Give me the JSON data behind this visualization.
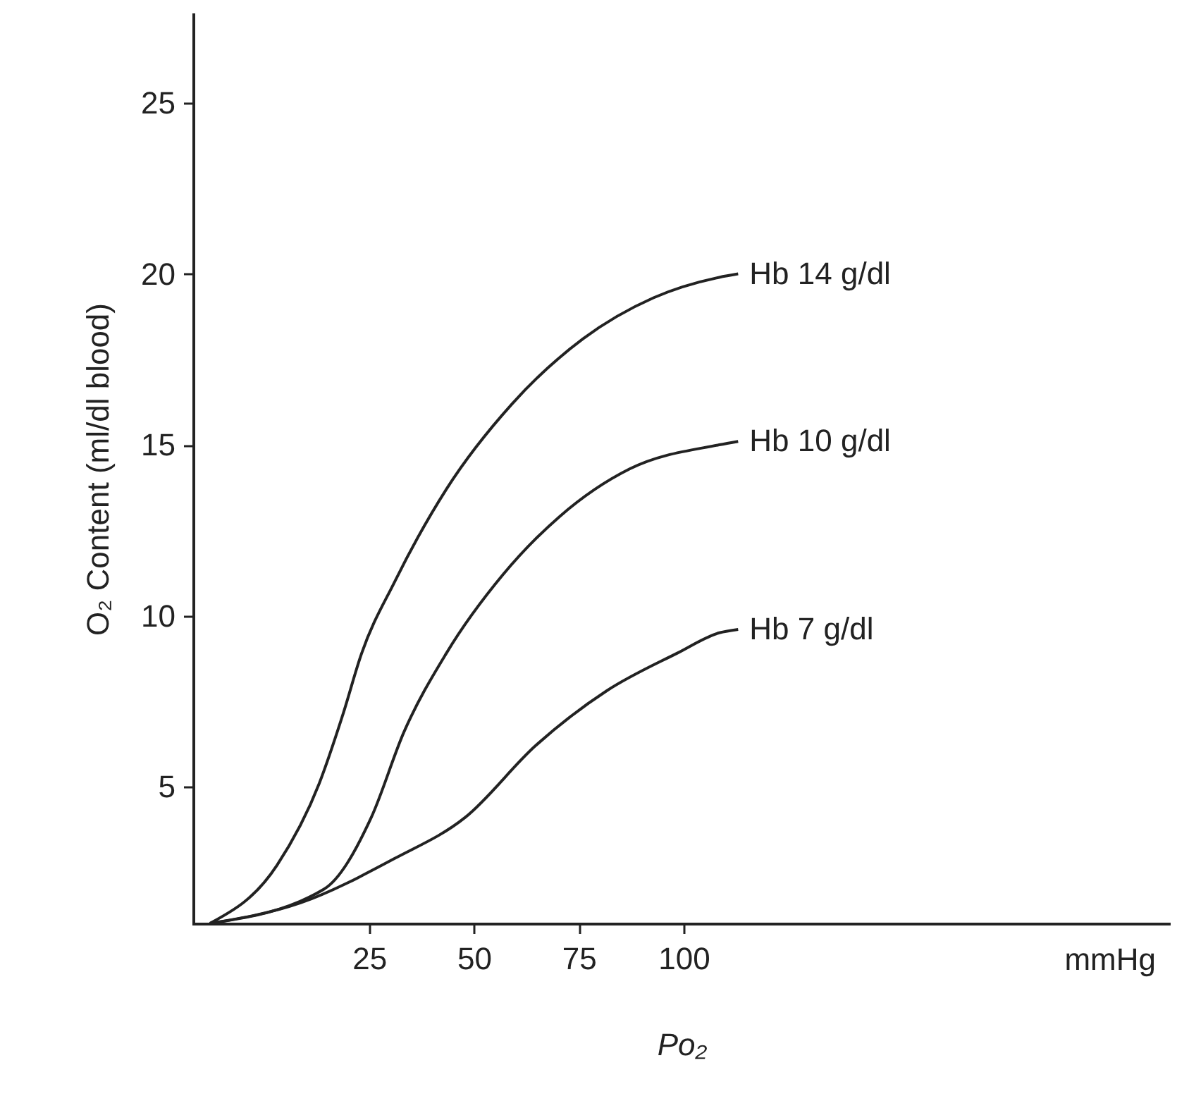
{
  "chart_data": {
    "type": "line",
    "xlabel": "Po₂",
    "ylabel": "O₂ Content (ml/dl blood)",
    "xlim": [
      -17,
      216
    ],
    "ylim": [
      1,
      27.6
    ],
    "xticks": [
      25,
      50,
      75,
      100
    ],
    "yticks": [
      5,
      10,
      15,
      20,
      25
    ],
    "grid": false,
    "marker": "none",
    "line_style": "solid",
    "annotations": [
      "mmHg"
    ],
    "series": [
      {
        "name": "Hb 14 g/dl",
        "color": "#222222",
        "x": [
          -13,
          3.0,
          13.1,
          18.7,
          23.2,
          31.1,
          43.4,
          59.1,
          76.0,
          92.8,
          108.5,
          113
        ],
        "values": [
          1.0,
          2.7,
          5.1,
          7.1,
          8.9,
          11.0,
          13.7,
          16.2,
          18.1,
          19.3,
          19.9,
          20.0
        ]
      },
      {
        "name": "Hb 10 g/dl",
        "color": "#222222",
        "x": [
          -13,
          14.2,
          25.5,
          33.3,
          43.4,
          56.9,
          70.4,
          87.2,
          108.5,
          113
        ],
        "values": [
          1.0,
          2.0,
          4.1,
          6.6,
          8.9,
          11.2,
          12.9,
          14.3,
          15.0,
          15.1
        ]
      },
      {
        "name": "Hb 7 g/dl",
        "color": "#222222",
        "x": [
          -13,
          8.6,
          31.1,
          47.9,
          64.7,
          81.6,
          98.4,
          108.5,
          113
        ],
        "values": [
          1.0,
          1.6,
          2.9,
          4.1,
          6.2,
          7.8,
          8.9,
          9.5,
          9.6
        ]
      }
    ]
  }
}
